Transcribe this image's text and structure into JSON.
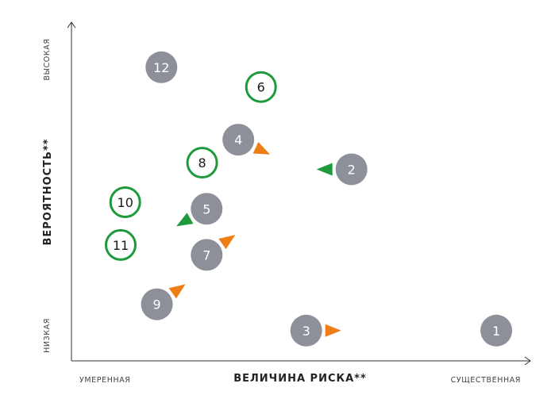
{
  "chart_data": {
    "type": "scatter",
    "xlabel": "ВЕЛИЧИНА РИСКА**",
    "ylabel": "ВЕРОЯТНОСТЬ**",
    "x_ticks": {
      "low": "УМЕРЕННАЯ",
      "high": "СУЩЕСТВЕННАЯ"
    },
    "y_ticks": {
      "low": "НИЗКАЯ",
      "high": "ВЫСОКАЯ"
    },
    "xlim": [
      0,
      100
    ],
    "ylim": [
      0,
      100
    ],
    "grid": false,
    "colors": {
      "grey_fill": "#8e9099",
      "green": "#1e9a3c",
      "orange": "#ef7d15",
      "axis": "#333333"
    },
    "points": [
      {
        "label": "1",
        "x": 93,
        "y": 8,
        "style": "grey",
        "arrow": null
      },
      {
        "label": "2",
        "x": 61,
        "y": 57,
        "style": "grey",
        "arrow": {
          "dir": "left",
          "color": "green"
        }
      },
      {
        "label": "3",
        "x": 51,
        "y": 8,
        "style": "grey",
        "arrow": {
          "dir": "right",
          "color": "orange"
        }
      },
      {
        "label": "4",
        "x": 36,
        "y": 66,
        "style": "grey",
        "arrow": {
          "dir": "down-right",
          "color": "orange"
        }
      },
      {
        "label": "5",
        "x": 29,
        "y": 45,
        "style": "grey",
        "arrow": {
          "dir": "down-left",
          "color": "green"
        }
      },
      {
        "label": "6",
        "x": 41,
        "y": 82,
        "style": "green",
        "arrow": null
      },
      {
        "label": "7",
        "x": 29,
        "y": 31,
        "style": "grey",
        "arrow": {
          "dir": "up-right",
          "color": "orange"
        }
      },
      {
        "label": "8",
        "x": 28,
        "y": 59,
        "style": "green",
        "arrow": null
      },
      {
        "label": "9",
        "x": 18,
        "y": 16,
        "style": "grey",
        "arrow": {
          "dir": "up-right",
          "color": "orange"
        }
      },
      {
        "label": "10",
        "x": 11,
        "y": 47,
        "style": "green",
        "arrow": null
      },
      {
        "label": "11",
        "x": 10,
        "y": 34,
        "style": "green",
        "arrow": null
      },
      {
        "label": "12",
        "x": 19,
        "y": 88,
        "style": "grey",
        "arrow": null
      }
    ]
  }
}
